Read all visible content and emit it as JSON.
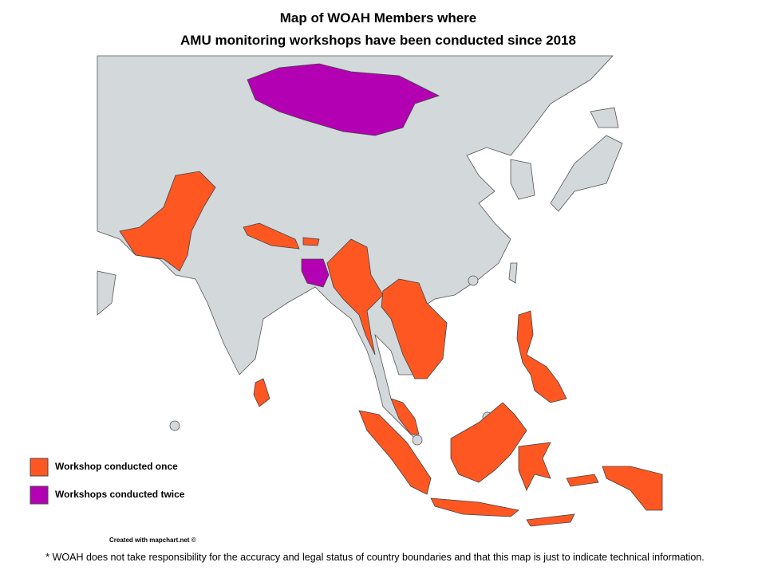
{
  "title": [
    "Map of WOAH Members where",
    "AMU monitoring  workshops have been conducted since 2018"
  ],
  "legend": [
    {
      "label": "Workshop conducted once",
      "color": "#ff5722"
    },
    {
      "label": "Workshops conducted twice",
      "color": "#b300b3"
    }
  ],
  "credit": "Created with mapchart.net ©",
  "note": "* WOAH does not take responsibility for the accuracy and legal status of country boundaries and that this map is just to indicate technical information."
}
